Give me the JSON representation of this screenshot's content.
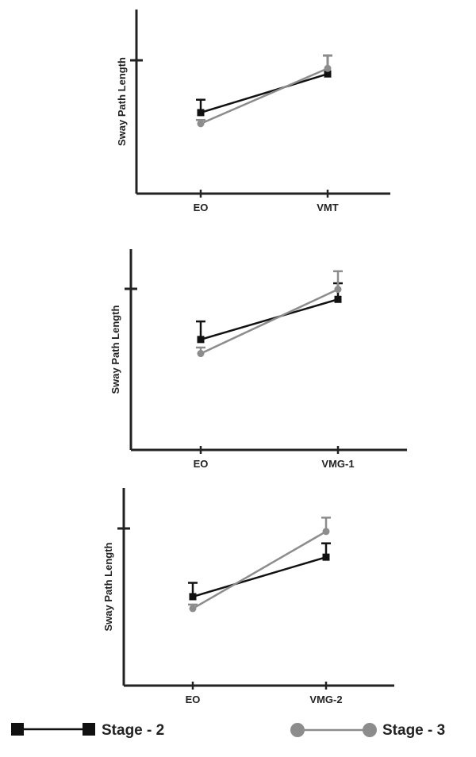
{
  "chart_data": [
    {
      "type": "line",
      "title": "",
      "xlabel": "",
      "ylabel": "Sway Path Length",
      "categories": [
        "EO",
        "VMT"
      ],
      "series": [
        {
          "name": "Stage - 2",
          "color": "#111111",
          "marker": "square",
          "values": [
            0.44,
            0.65
          ],
          "error": [
            0.07,
            0.1
          ]
        },
        {
          "name": "Stage - 3",
          "color": "#8c8c8c",
          "marker": "circle",
          "values": [
            0.38,
            0.68
          ],
          "error": [
            0.02,
            0.07
          ]
        }
      ],
      "ylim": [
        0,
        1
      ],
      "grid": false
    },
    {
      "type": "line",
      "title": "",
      "xlabel": "",
      "ylabel": "Sway Path Length",
      "categories": [
        "EO",
        "VMG-1"
      ],
      "series": [
        {
          "name": "Stage - 2",
          "color": "#111111",
          "marker": "square",
          "values": [
            0.55,
            0.75
          ],
          "error": [
            0.09,
            0.08
          ]
        },
        {
          "name": "Stage - 3",
          "color": "#8c8c8c",
          "marker": "circle",
          "values": [
            0.48,
            0.8
          ],
          "error": [
            0.03,
            0.09
          ]
        }
      ],
      "ylim": [
        0,
        1
      ],
      "grid": false
    },
    {
      "type": "line",
      "title": "",
      "xlabel": "",
      "ylabel": "Sway Path Length",
      "categories": [
        "EO",
        "VMG-2"
      ],
      "series": [
        {
          "name": "Stage - 2",
          "color": "#111111",
          "marker": "square",
          "values": [
            0.45,
            0.65
          ],
          "error": [
            0.07,
            0.07
          ]
        },
        {
          "name": "Stage - 3",
          "color": "#8c8c8c",
          "marker": "circle",
          "values": [
            0.39,
            0.78
          ],
          "error": [
            0.02,
            0.07
          ]
        }
      ],
      "ylim": [
        0,
        1
      ],
      "grid": false
    }
  ],
  "legend": {
    "placement": "bottom",
    "items": [
      {
        "label": "Stage - 2",
        "color": "#111111",
        "marker": "square"
      },
      {
        "label": "Stage - 3",
        "color": "#8c8c8c",
        "marker": "circle"
      }
    ]
  }
}
